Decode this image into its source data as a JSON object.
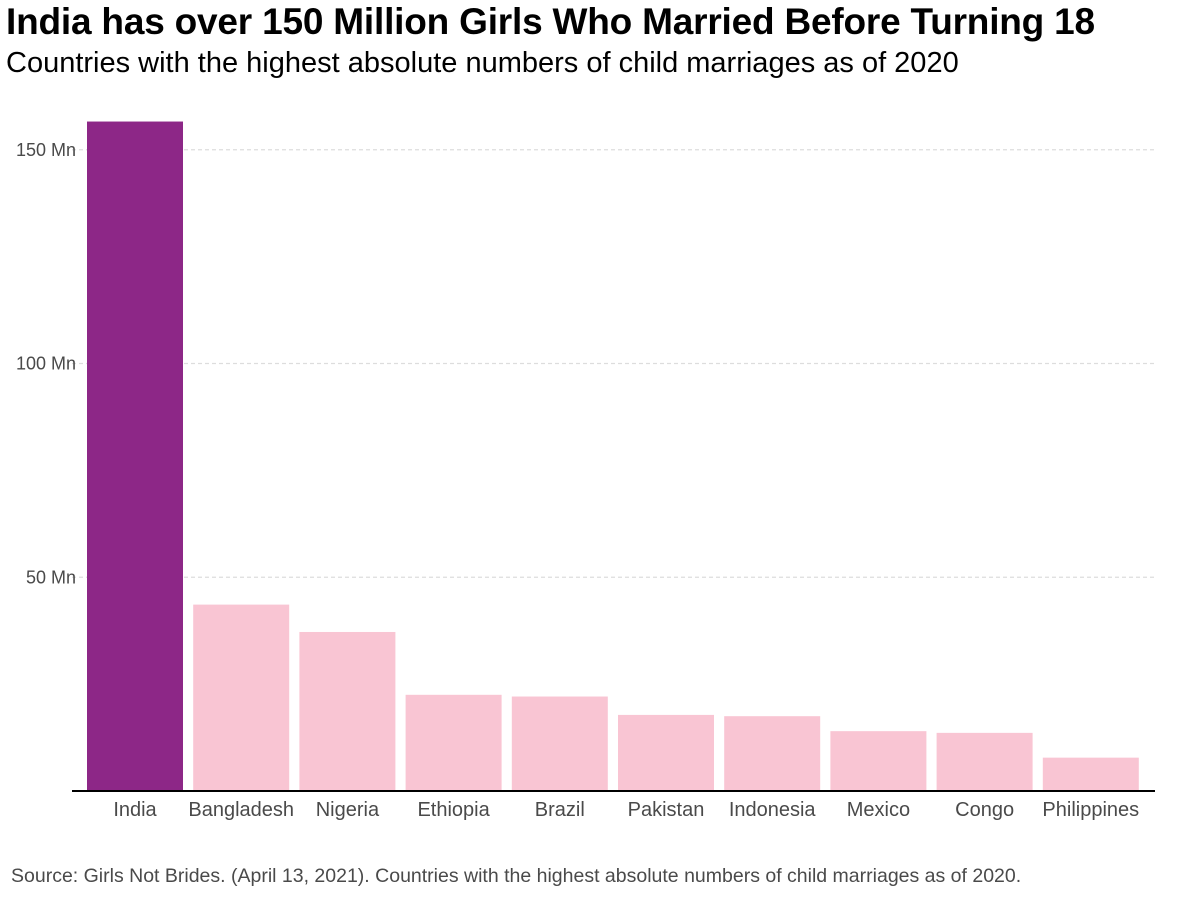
{
  "title": "India has over 150 Million Girls Who Married Before Turning 18",
  "subtitle": "Countries with the highest absolute numbers of child marriages as of 2020",
  "source": "Source: Girls Not Brides. (April 13, 2021). Countries with the highest absolute numbers of child marriages as of 2020.",
  "chart_data": {
    "type": "bar",
    "categories": [
      "India",
      "Bangladesh",
      "Nigeria",
      "Ethiopia",
      "Brazil",
      "Pakistan",
      "Indonesia",
      "Mexico",
      "Congo",
      "Philippines"
    ],
    "values": [
      156.6,
      43.6,
      37.2,
      22.5,
      22.1,
      17.8,
      17.5,
      14.0,
      13.6,
      7.8
    ],
    "unit": "Mn",
    "ylim": [
      0,
      160
    ],
    "yticks": [
      50,
      100,
      150
    ],
    "ytick_labels": [
      "50 Mn",
      "100 Mn",
      "150 Mn"
    ],
    "grid": true,
    "colors": {
      "highlight": "#8d2787",
      "bar": "#f9c5d3",
      "grid": "#dddddd",
      "axis": "#000000",
      "tick_text": "#4a4a4a"
    },
    "highlight_index": 0
  }
}
